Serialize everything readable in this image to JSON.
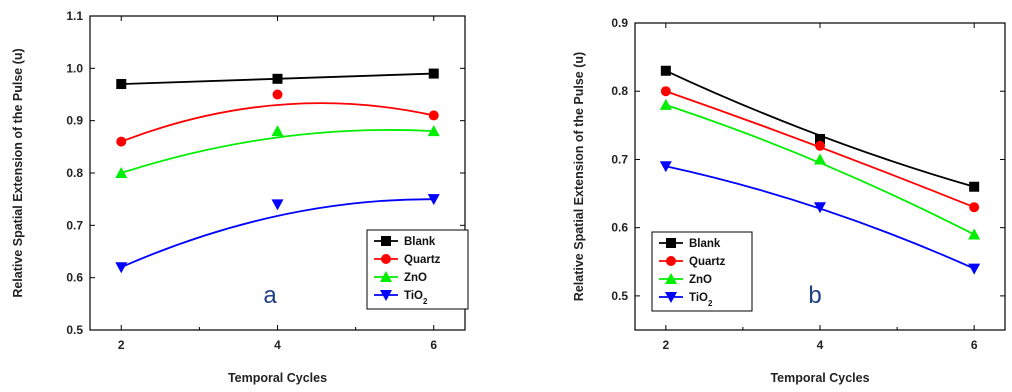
{
  "chart_data": [
    {
      "type": "line",
      "panel_label": "a",
      "xlabel": "Temporal Cycles",
      "ylabel": "Relative Spatial Extension of the Pulse (u)",
      "xlim": [
        1.6,
        6.4
      ],
      "ylim": [
        0.5,
        1.1
      ],
      "xticks": [
        "2",
        "4",
        "6"
      ],
      "yticks": [
        "0.5",
        "0.6",
        "0.7",
        "0.8",
        "0.9",
        "1.0",
        "1.1"
      ],
      "x": [
        2,
        4,
        6
      ],
      "legend_position": "bottom-right",
      "series": [
        {
          "name": "Blank",
          "color": "#000000",
          "marker": "square",
          "values": [
            0.97,
            0.98,
            0.99
          ],
          "fit": [
            0.97,
            0.98,
            0.99
          ]
        },
        {
          "name": "Quartz",
          "color": "#ff0000",
          "marker": "circle",
          "values": [
            0.86,
            0.95,
            0.91
          ],
          "fit": [
            0.86,
            0.93,
            0.91
          ]
        },
        {
          "name": "ZnO",
          "color": "#00ee00",
          "marker": "triangle-up",
          "values": [
            0.8,
            0.88,
            0.88
          ],
          "fit": [
            0.8,
            0.868,
            0.88
          ]
        },
        {
          "name": "TiO2",
          "color": "#0000ff",
          "marker": "triangle-down",
          "values": [
            0.62,
            0.74,
            0.75
          ],
          "fit": [
            0.62,
            0.718,
            0.75
          ]
        }
      ]
    },
    {
      "type": "line",
      "panel_label": "b",
      "xlabel": "Temporal Cycles",
      "ylabel": "Relative Spatial Extension of the Pulse (u)",
      "xlim": [
        1.6,
        6.4
      ],
      "ylim": [
        0.45,
        0.9
      ],
      "xticks": [
        "2",
        "4",
        "6"
      ],
      "yticks": [
        "0.5",
        "0.6",
        "0.7",
        "0.8",
        "0.9"
      ],
      "x": [
        2,
        4,
        6
      ],
      "legend_position": "bottom-left",
      "series": [
        {
          "name": "Blank",
          "color": "#000000",
          "marker": "square",
          "values": [
            0.83,
            0.73,
            0.66
          ],
          "fit": [
            0.83,
            0.735,
            0.66
          ]
        },
        {
          "name": "Quartz",
          "color": "#ff0000",
          "marker": "circle",
          "values": [
            0.8,
            0.72,
            0.63
          ],
          "fit": [
            0.8,
            0.718,
            0.63
          ]
        },
        {
          "name": "ZnO",
          "color": "#00ee00",
          "marker": "triangle-up",
          "values": [
            0.78,
            0.7,
            0.59
          ],
          "fit": [
            0.78,
            0.695,
            0.59
          ]
        },
        {
          "name": "TiO2",
          "color": "#0000ff",
          "marker": "triangle-down",
          "values": [
            0.69,
            0.63,
            0.54
          ],
          "fit": [
            0.69,
            0.628,
            0.54
          ]
        }
      ]
    }
  ]
}
